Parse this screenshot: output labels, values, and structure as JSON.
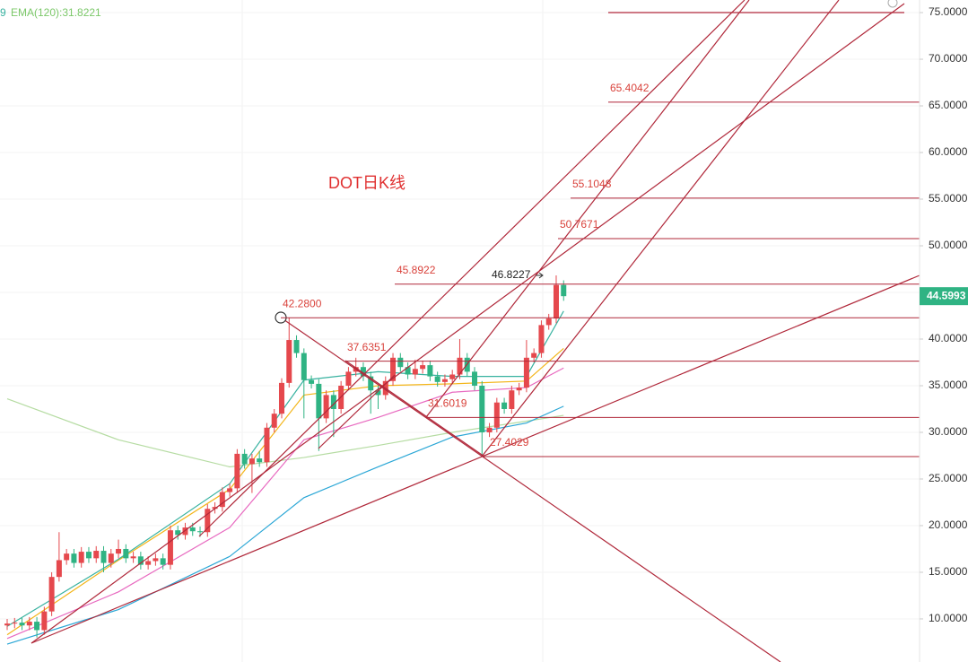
{
  "chart_data": {
    "type": "candlestick",
    "title": "DOT日K线",
    "legend_fragment": "9",
    "open": [
      9.3,
      9.5,
      9.6,
      9.3,
      9.7,
      8.8,
      10.8,
      14.5,
      16.3,
      17.0,
      16.0,
      17.2,
      16.5,
      17.3,
      16.0,
      17.0,
      17.5,
      16.5,
      16.7,
      15.8,
      16.2,
      16.5,
      15.8,
      19.5,
      19.0,
      19.8,
      19.4,
      19.3,
      21.8,
      22.0,
      23.6,
      24.0,
      27.7,
      26.6,
      27.2,
      26.8,
      30.5,
      32.0,
      35.3,
      39.9,
      38.5,
      35.6,
      35.2,
      31.5,
      34.0,
      32.5,
      35.0,
      36.5,
      37.0,
      36.0,
      34.5,
      34.0,
      35.5,
      38.0,
      37.0,
      36.2,
      36.8,
      37.2,
      36.0,
      35.4,
      35.7,
      36.2,
      38.0,
      36.5,
      35.0,
      30.0,
      30.5,
      33.2,
      32.5,
      34.5,
      34.8,
      38.0,
      38.5,
      41.5,
      42.2,
      45.8
    ],
    "high": [
      10.0,
      10.1,
      10.1,
      10.2,
      10.2,
      11.3,
      15.0,
      19.3,
      17.5,
      17.5,
      17.7,
      17.7,
      17.8,
      17.8,
      17.5,
      18.5,
      18.0,
      17.2,
      17.2,
      16.7,
      17.0,
      17.0,
      20.0,
      20.0,
      20.3,
      20.3,
      19.9,
      22.3,
      22.5,
      24.1,
      24.5,
      28.2,
      28.2,
      27.7,
      28.0,
      31.0,
      32.5,
      35.8,
      42.28,
      40.4,
      39.0,
      36.1,
      35.7,
      34.5,
      34.5,
      35.5,
      37.0,
      38.0,
      37.5,
      36.5,
      35.0,
      36.0,
      38.5,
      38.5,
      37.5,
      37.8,
      37.7,
      37.7,
      36.5,
      36.2,
      36.7,
      40.0,
      38.5,
      37.0,
      35.5,
      31.0,
      33.7,
      33.7,
      35.0,
      35.3,
      39.9,
      39.0,
      42.0,
      42.7,
      46.8227,
      46.3
    ],
    "low": [
      8.8,
      9.0,
      8.8,
      8.8,
      8.0,
      8.3,
      10.3,
      14.0,
      15.8,
      15.5,
      15.5,
      16.0,
      16.0,
      15.0,
      15.5,
      16.5,
      16.0,
      16.0,
      15.3,
      15.3,
      15.7,
      15.3,
      15.3,
      18.5,
      18.5,
      18.9,
      18.8,
      18.8,
      21.3,
      21.5,
      23.1,
      23.5,
      26.1,
      23.5,
      26.3,
      26.3,
      30.0,
      31.5,
      34.8,
      38.0,
      31.5,
      34.7,
      28.0,
      31.0,
      29.5,
      32.0,
      34.5,
      36.0,
      35.5,
      32.0,
      32.5,
      33.5,
      35.0,
      36.5,
      35.7,
      35.7,
      36.3,
      35.5,
      34.9,
      34.9,
      35.2,
      35.7,
      36.0,
      34.5,
      27.4029,
      29.5,
      30.0,
      32.0,
      32.0,
      34.0,
      34.3,
      37.5,
      38.0,
      41.0,
      41.7,
      44.1
    ],
    "close": [
      9.5,
      9.6,
      9.3,
      9.7,
      8.8,
      10.8,
      14.5,
      16.3,
      17.0,
      16.0,
      17.2,
      16.5,
      17.3,
      16.0,
      17.0,
      17.5,
      16.5,
      16.7,
      15.8,
      16.2,
      16.5,
      15.8,
      19.5,
      19.0,
      19.8,
      19.4,
      19.3,
      21.8,
      22.0,
      23.6,
      24.0,
      27.7,
      26.6,
      27.2,
      26.8,
      30.5,
      32.0,
      35.3,
      39.9,
      38.5,
      35.6,
      35.2,
      31.5,
      34.0,
      32.5,
      35.0,
      36.5,
      37.0,
      36.0,
      34.5,
      34.0,
      35.5,
      38.0,
      37.0,
      36.2,
      36.8,
      37.2,
      36.0,
      35.4,
      35.7,
      36.2,
      38.0,
      36.5,
      35.0,
      30.0,
      30.5,
      33.2,
      32.5,
      34.5,
      34.8,
      38.0,
      38.5,
      41.5,
      42.2,
      45.8,
      44.5993
    ],
    "up_color": "#e5484d",
    "down_color": "#2fb383",
    "lines": [
      {
        "name": "EMA(120):31.8221",
        "color": "#b6dca3",
        "x": [
          0,
          15,
          30,
          40,
          50,
          60,
          70,
          75
        ],
        "values": [
          33.6,
          29.2,
          26.3,
          27.3,
          28.6,
          30.0,
          31.2,
          31.8221
        ]
      },
      {
        "color": "#2ba7d6",
        "x": [
          0,
          15,
          30,
          40,
          50,
          60,
          70,
          75
        ],
        "values": [
          7.3,
          11.0,
          16.7,
          23.0,
          26.3,
          29.5,
          31.0,
          32.8
        ]
      },
      {
        "color": "#e86ac0",
        "x": [
          0,
          15,
          30,
          40,
          50,
          60,
          70,
          75
        ],
        "values": [
          7.9,
          12.9,
          19.8,
          29.2,
          31.6,
          34.3,
          34.8,
          36.9
        ]
      },
      {
        "color": "#f3b519",
        "x": [
          0,
          15,
          30,
          40,
          50,
          60,
          70,
          75
        ],
        "values": [
          8.3,
          16.3,
          23.9,
          34.0,
          35.0,
          35.2,
          35.5,
          39.0
        ]
      },
      {
        "color": "#38b2a0",
        "x": [
          0,
          15,
          30,
          40,
          50,
          60,
          70,
          75
        ],
        "values": [
          9.2,
          16.4,
          24.5,
          35.6,
          36.5,
          36.0,
          36.0,
          43.0
        ]
      }
    ],
    "levels": [
      {
        "value": 65.4042,
        "label": "65.4042"
      },
      {
        "value": 55.1048,
        "label": "55.1048"
      },
      {
        "value": 50.7671,
        "label": "50.7671"
      },
      {
        "value": 45.8922,
        "label": "45.8922"
      },
      {
        "value": 42.28,
        "label": "42.2800"
      },
      {
        "value": 37.6351,
        "label": "37.6351"
      },
      {
        "value": 31.6019,
        "label": "31.6019"
      },
      {
        "value": 27.4029,
        "label": "27.4029"
      }
    ],
    "peak": {
      "value": 46.8227,
      "label": "46.8227"
    },
    "current_price": {
      "value": 44.5993,
      "label": "44.5993"
    },
    "ylim": [
      5.38,
      76.35
    ],
    "yticks": [
      {
        "value": 10,
        "label": "10.0000"
      },
      {
        "value": 15,
        "label": "15.0000"
      },
      {
        "value": 20,
        "label": "20.0000"
      },
      {
        "value": 25,
        "label": "25.0000"
      },
      {
        "value": 30,
        "label": "30.0000"
      },
      {
        "value": 35,
        "label": "35.0000"
      },
      {
        "value": 40,
        "label": "40.0000"
      },
      {
        "value": 45,
        "label": "45.0000"
      },
      {
        "value": 50,
        "label": "50.0000"
      },
      {
        "value": 55,
        "label": "55.0000"
      },
      {
        "value": 60,
        "label": "60.0000"
      },
      {
        "value": 65,
        "label": "65.0000"
      },
      {
        "value": 70,
        "label": "70.0000"
      },
      {
        "value": 75,
        "label": "75.0000"
      }
    ],
    "grid": true
  }
}
